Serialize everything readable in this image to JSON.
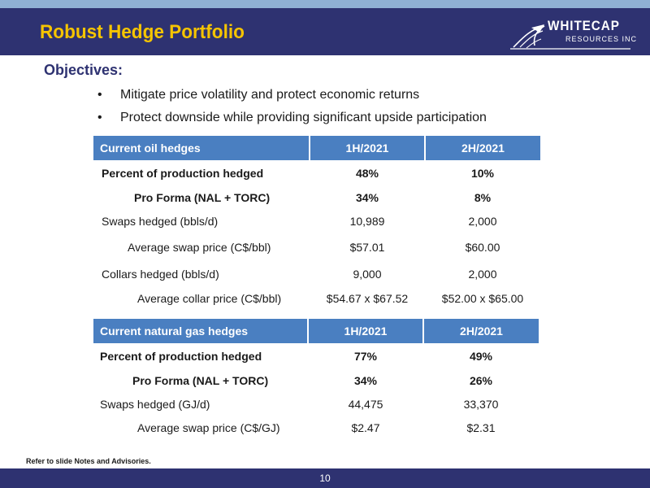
{
  "header": {
    "title": "Robust Hedge Portfolio",
    "logo": {
      "name": "WHITECAP",
      "subname": "RESOURCES INC"
    }
  },
  "objectives": {
    "heading": "Objectives:",
    "bullet_char": "•",
    "items": [
      "Mitigate price volatility and protect economic returns",
      "Protect downside while providing significant upside participation"
    ]
  },
  "oil_table": {
    "headers": [
      "Current oil hedges",
      "1H/2021",
      "2H/2021"
    ],
    "rows": [
      {
        "label": "Percent of production hedged",
        "h1": "48%",
        "h2": "10%"
      },
      {
        "label": "Pro Forma (NAL + TORC)",
        "h1": "34%",
        "h2": "8%"
      },
      {
        "label": "Swaps hedged (bbls/d)",
        "h1": "10,989",
        "h2": "2,000"
      },
      {
        "label": "Average swap price (C$/bbl)",
        "h1": "$57.01",
        "h2": "$60.00"
      },
      {
        "label": "Collars hedged (bbls/d)",
        "h1": "9,000",
        "h2": "2,000"
      },
      {
        "label": "Average collar price (C$/bbl)",
        "h1": "$54.67 x $67.52",
        "h2": "$52.00 x $65.00"
      }
    ]
  },
  "gas_table": {
    "headers": [
      "Current natural gas hedges",
      "1H/2021",
      "2H/2021"
    ],
    "rows": [
      {
        "label": "Percent of production hedged",
        "h1": "77%",
        "h2": "49%"
      },
      {
        "label": "Pro Forma (NAL + TORC)",
        "h1": "34%",
        "h2": "26%"
      },
      {
        "label": "Swaps hedged (GJ/d)",
        "h1": "44,475",
        "h2": "33,370"
      },
      {
        "label": "Average swap price (C$/GJ)",
        "h1": "$2.47",
        "h2": "$2.31"
      }
    ]
  },
  "footnote": "Refer to slide Notes and Advisories.",
  "page_number": "10",
  "colors": {
    "header_bg": "#2e3271",
    "title": "#f5c400",
    "table_header": "#4a7fc1",
    "top_strip": "#8fb0d4",
    "objectives_heading": "#2e3271"
  }
}
